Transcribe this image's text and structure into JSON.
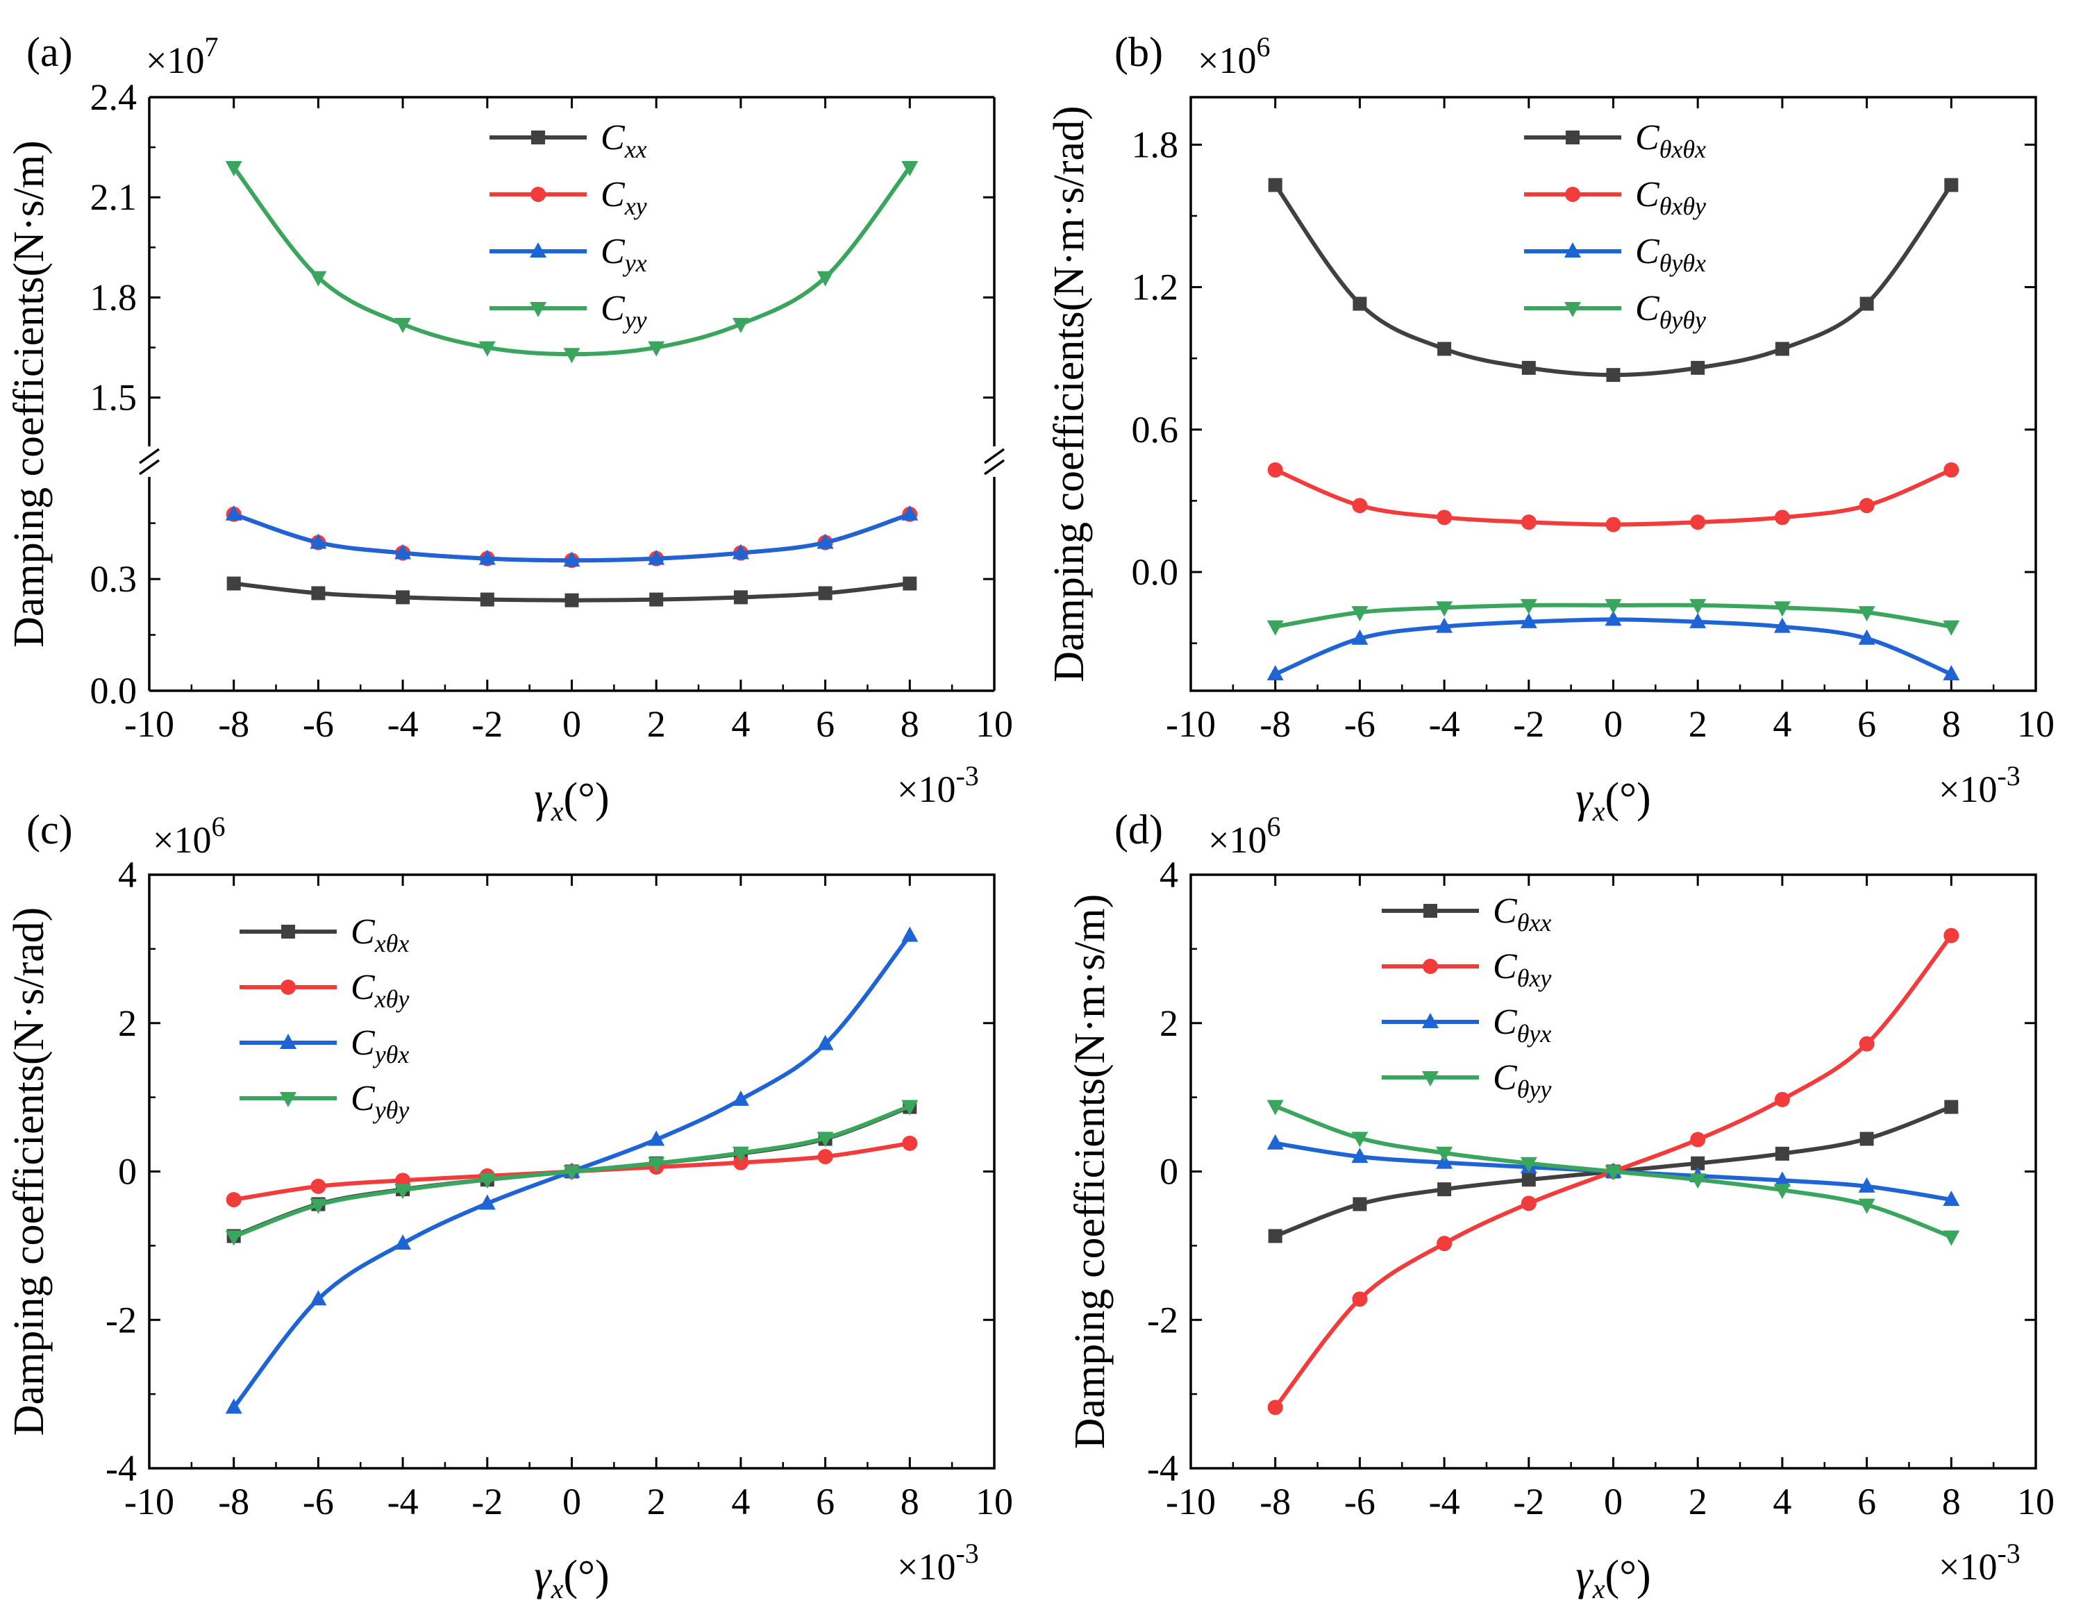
{
  "chart_data": [
    {
      "panel_label": "(a)",
      "type": "line",
      "multiplier_y": "×10^7",
      "multiplier_x": "×10^-3",
      "xlabel": "γx(°)",
      "ylabel": "Damping coefficients(N·s/m)",
      "xlim": [
        -10,
        10
      ],
      "x_ticks": [
        "-10",
        "-8",
        "-6",
        "-4",
        "-2",
        "0",
        "2",
        "4",
        "6",
        "8",
        "10"
      ],
      "broken_y_axis": true,
      "y_lower_range": [
        0,
        0.55
      ],
      "y_lower_ticks": [
        "0.0",
        "0.3"
      ],
      "y_upper_range": [
        1.36,
        2.4
      ],
      "y_upper_ticks": [
        "1.5",
        "1.8",
        "2.1",
        "2.4"
      ],
      "x": [
        -8,
        -6,
        -4,
        -2,
        0,
        2,
        4,
        6,
        8
      ],
      "series": [
        {
          "name": "C",
          "sub": "xx",
          "color": "#404040",
          "marker": "square",
          "values": [
            0.288,
            0.262,
            0.251,
            0.245,
            0.243,
            0.245,
            0.251,
            0.262,
            0.288
          ]
        },
        {
          "name": "C",
          "sub": "xy",
          "color": "#f23c3c",
          "marker": "circle",
          "values": [
            0.474,
            0.398,
            0.37,
            0.355,
            0.35,
            0.355,
            0.37,
            0.398,
            0.474
          ]
        },
        {
          "name": "C",
          "sub": "yx",
          "color": "#1f64d4",
          "marker": "triangle-up",
          "values": [
            0.474,
            0.398,
            0.37,
            0.355,
            0.35,
            0.355,
            0.37,
            0.398,
            0.474
          ]
        },
        {
          "name": "C",
          "sub": "yy",
          "color": "#3aa55c",
          "marker": "triangle-down",
          "values": [
            2.19,
            1.86,
            1.72,
            1.65,
            1.63,
            1.65,
            1.72,
            1.86,
            2.19
          ]
        }
      ]
    },
    {
      "panel_label": "(b)",
      "type": "line",
      "multiplier_y": "×10^6",
      "multiplier_x": "×10^-3",
      "xlabel": "γx(°)",
      "ylabel": "Damping coefficients(N·m·s/rad)",
      "xlim": [
        -10,
        10
      ],
      "x_ticks": [
        "-10",
        "-8",
        "-6",
        "-4",
        "-2",
        "0",
        "2",
        "4",
        "6",
        "8",
        "10"
      ],
      "ylim": [
        -0.5,
        2.0
      ],
      "y_ticks": [
        "0.0",
        "0.6",
        "1.2",
        "1.8"
      ],
      "x": [
        -8,
        -6,
        -4,
        -2,
        0,
        2,
        4,
        6,
        8
      ],
      "series": [
        {
          "name": "C",
          "sub": "θxθx",
          "color": "#404040",
          "marker": "square",
          "values": [
            1.63,
            1.13,
            0.94,
            0.86,
            0.83,
            0.86,
            0.94,
            1.13,
            1.63
          ]
        },
        {
          "name": "C",
          "sub": "θxθy",
          "color": "#f23c3c",
          "marker": "circle",
          "values": [
            0.43,
            0.28,
            0.23,
            0.21,
            0.2,
            0.21,
            0.23,
            0.28,
            0.43
          ]
        },
        {
          "name": "C",
          "sub": "θyθx",
          "color": "#1f64d4",
          "marker": "triangle-up",
          "values": [
            -0.43,
            -0.28,
            -0.23,
            -0.21,
            -0.2,
            -0.21,
            -0.23,
            -0.28,
            -0.43
          ]
        },
        {
          "name": "C",
          "sub": "θyθy",
          "color": "#3aa55c",
          "marker": "triangle-down",
          "values": [
            -0.23,
            -0.17,
            -0.15,
            -0.14,
            -0.14,
            -0.14,
            -0.15,
            -0.17,
            -0.23
          ]
        }
      ]
    },
    {
      "panel_label": "(c)",
      "type": "line",
      "multiplier_y": "×10^6",
      "multiplier_x": "×10^-3",
      "xlabel": "γx(°)",
      "ylabel": "Damping coefficients(N·s/rad)",
      "xlim": [
        -10,
        10
      ],
      "x_ticks": [
        "-10",
        "-8",
        "-6",
        "-4",
        "-2",
        "0",
        "2",
        "4",
        "6",
        "8",
        "10"
      ],
      "ylim": [
        -4,
        4
      ],
      "y_ticks": [
        "-4",
        "-2",
        "0",
        "2",
        "4"
      ],
      "x": [
        -8,
        -6,
        -4,
        -2,
        0,
        2,
        4,
        6,
        8
      ],
      "series": [
        {
          "name": "C",
          "sub": "xθx",
          "color": "#404040",
          "marker": "square",
          "values": [
            -0.87,
            -0.44,
            -0.24,
            -0.11,
            0,
            0.11,
            0.24,
            0.44,
            0.87
          ]
        },
        {
          "name": "C",
          "sub": "xθy",
          "color": "#f23c3c",
          "marker": "circle",
          "values": [
            -0.38,
            -0.2,
            -0.12,
            -0.06,
            0,
            0.06,
            0.12,
            0.2,
            0.38
          ]
        },
        {
          "name": "C",
          "sub": "yθx",
          "color": "#1f64d4",
          "marker": "triangle-up",
          "values": [
            -3.18,
            -1.72,
            -0.97,
            -0.43,
            0,
            0.43,
            0.97,
            1.72,
            3.18
          ]
        },
        {
          "name": "C",
          "sub": "yθy",
          "color": "#3aa55c",
          "marker": "triangle-down",
          "values": [
            -0.88,
            -0.45,
            -0.25,
            -0.11,
            0,
            0.11,
            0.25,
            0.45,
            0.88
          ]
        }
      ]
    },
    {
      "panel_label": "(d)",
      "type": "line",
      "multiplier_y": "×10^6",
      "multiplier_x": "×10^-3",
      "xlabel": "γx(°)",
      "ylabel": "Damping coefficients(N·m·s/m)",
      "xlim": [
        -10,
        10
      ],
      "x_ticks": [
        "-10",
        "-8",
        "-6",
        "-4",
        "-2",
        "0",
        "2",
        "4",
        "6",
        "8",
        "10"
      ],
      "ylim": [
        -4,
        4
      ],
      "y_ticks": [
        "-4",
        "-2",
        "0",
        "2",
        "4"
      ],
      "x": [
        -8,
        -6,
        -4,
        -2,
        0,
        2,
        4,
        6,
        8
      ],
      "series": [
        {
          "name": "C",
          "sub": "θxx",
          "color": "#404040",
          "marker": "square",
          "values": [
            -0.87,
            -0.44,
            -0.24,
            -0.11,
            0,
            0.11,
            0.24,
            0.44,
            0.87
          ]
        },
        {
          "name": "C",
          "sub": "θxy",
          "color": "#f23c3c",
          "marker": "circle",
          "values": [
            -3.18,
            -1.72,
            -0.97,
            -0.43,
            0,
            0.43,
            0.97,
            1.72,
            3.18
          ]
        },
        {
          "name": "C",
          "sub": "θyx",
          "color": "#1f64d4",
          "marker": "triangle-up",
          "values": [
            0.38,
            0.2,
            0.12,
            0.06,
            0,
            -0.06,
            -0.12,
            -0.2,
            -0.38
          ]
        },
        {
          "name": "C",
          "sub": "θyy",
          "color": "#3aa55c",
          "marker": "triangle-down",
          "values": [
            0.88,
            0.45,
            0.25,
            0.11,
            0,
            -0.11,
            -0.25,
            -0.45,
            -0.88
          ]
        }
      ]
    }
  ]
}
